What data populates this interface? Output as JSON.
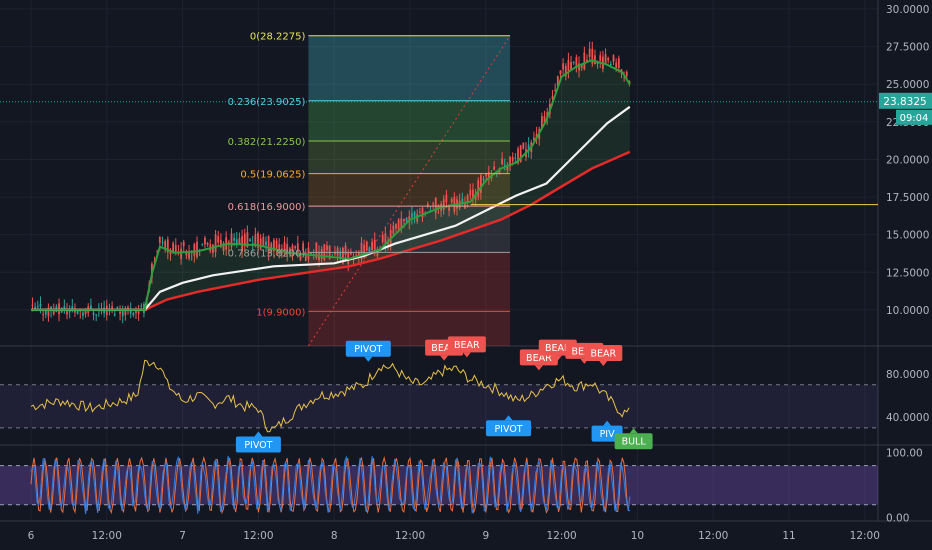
{
  "chart_data": {
    "type": "candlestick",
    "price_axis": {
      "range": [
        7.6,
        30.6
      ],
      "ticks": [
        "30.0000",
        "27.5000",
        "25.0000",
        "22.5000",
        "20.0000",
        "17.5000",
        "15.0000",
        "12.5000",
        "10.0000"
      ],
      "tick_values": [
        30,
        27.5,
        25,
        22.5,
        20,
        17.5,
        15,
        12.5,
        10
      ]
    },
    "last_price": {
      "label": "23.8325",
      "value": 23.8325,
      "countdown": "09:04"
    },
    "horizontal_line": {
      "value": 17.0
    },
    "fibonacci": {
      "time_start": 3.66,
      "time_end": 6.32,
      "levels": [
        {
          "label": "0(28.2275)",
          "ratio": 0,
          "price": 28.2275,
          "color": "#e8e552"
        },
        {
          "label": "0.236(23.9025)",
          "ratio": 0.236,
          "price": 23.9025,
          "color": "#4dd0e1"
        },
        {
          "label": "0.382(21.2250)",
          "ratio": 0.382,
          "price": 21.225,
          "color": "#8bc34a"
        },
        {
          "label": "0.5(19.0625)",
          "ratio": 0.5,
          "price": 19.0625,
          "color": "#ffa726"
        },
        {
          "label": "0.618(16.9000)",
          "ratio": 0.618,
          "price": 16.9,
          "color": "#ef9a9a"
        },
        {
          "label": "0.786(13.8200)",
          "ratio": 0.786,
          "price": 13.82,
          "color": "#9e9e9e"
        },
        {
          "label": "1(9.9000)",
          "ratio": 1,
          "price": 9.9,
          "color": "#f44336"
        }
      ]
    },
    "time_axis": {
      "labels": [
        "6",
        "12:00",
        "7",
        "12:00",
        "8",
        "12:00",
        "9",
        "12:00",
        "10",
        "12:00",
        "11",
        "12:00"
      ],
      "positions": [
        0,
        1,
        2,
        3,
        4,
        5,
        6,
        7,
        8,
        9,
        10,
        11
      ]
    },
    "ema_fast": {
      "name": "",
      "x": [
        0,
        1.5,
        1.6,
        1.7,
        1.9,
        2.2,
        2.6,
        3.0,
        3.4,
        3.8,
        4.2,
        4.6,
        5.0,
        5.4,
        5.8,
        6.0,
        6.2,
        6.4,
        6.6,
        6.8,
        7.0,
        7.2,
        7.4,
        7.6,
        7.8,
        7.9
      ],
      "y": [
        10.0,
        10.0,
        12.5,
        14.2,
        13.8,
        13.9,
        14.4,
        14.3,
        13.8,
        13.6,
        13.4,
        14.0,
        16.0,
        16.8,
        17.2,
        18.6,
        19.4,
        19.8,
        20.8,
        22.6,
        25.5,
        26.2,
        26.6,
        26.3,
        25.8,
        25.0
      ]
    },
    "ema_mid": {
      "name": "",
      "x": [
        0,
        1.5,
        1.7,
        2.0,
        2.4,
        2.8,
        3.2,
        3.6,
        4.0,
        4.4,
        4.8,
        5.2,
        5.6,
        6.0,
        6.4,
        6.8,
        7.2,
        7.6,
        7.9
      ],
      "y": [
        10.0,
        10.0,
        11.2,
        11.8,
        12.3,
        12.6,
        12.9,
        13.0,
        13.1,
        13.6,
        14.4,
        15.0,
        15.6,
        16.6,
        17.6,
        18.4,
        20.4,
        22.4,
        23.5
      ]
    },
    "ema_slow": {
      "name": "",
      "x": [
        0,
        1.5,
        1.8,
        2.2,
        2.6,
        3.0,
        3.4,
        3.8,
        4.2,
        4.6,
        5.0,
        5.4,
        5.8,
        6.2,
        6.6,
        7.0,
        7.4,
        7.9
      ],
      "y": [
        10.0,
        10.0,
        10.7,
        11.2,
        11.6,
        12.0,
        12.3,
        12.6,
        12.9,
        13.4,
        14.0,
        14.6,
        15.3,
        16.0,
        17.0,
        18.2,
        19.4,
        20.5
      ]
    },
    "rsi_panel": {
      "ticks": [
        "80.0000",
        "40.0000"
      ],
      "tick_values": [
        80,
        40
      ],
      "range": [
        15,
        105
      ],
      "upper_band": 70,
      "lower_band": 30,
      "x": [
        0,
        0.4,
        0.8,
        1.2,
        1.4,
        1.5,
        1.6,
        1.7,
        1.8,
        2.0,
        2.2,
        2.4,
        2.6,
        2.8,
        3.0,
        3.1,
        3.2,
        3.4,
        3.6,
        3.8,
        4.0,
        4.2,
        4.4,
        4.6,
        4.8,
        5.0,
        5.2,
        5.4,
        5.6,
        5.8,
        6.0,
        6.2,
        6.4,
        6.6,
        6.8,
        7.0,
        7.2,
        7.4,
        7.6,
        7.8,
        7.9
      ],
      "y": [
        50,
        55,
        48,
        55,
        60,
        90,
        92,
        88,
        70,
        55,
        60,
        52,
        58,
        50,
        48,
        32,
        28,
        40,
        52,
        60,
        62,
        66,
        70,
        88,
        85,
        72,
        70,
        82,
        85,
        75,
        70,
        64,
        55,
        60,
        70,
        75,
        68,
        72,
        58,
        44,
        44
      ]
    },
    "stoch_panel": {
      "ticks": [
        "100.00",
        "0.00"
      ],
      "tick_values": [
        100,
        0
      ],
      "range": [
        -5,
        110
      ],
      "upper_band": 80,
      "lower_band": 20
    },
    "markers": [
      {
        "text": "PIVOT",
        "x": 3.0,
        "panel": "rsi",
        "value": 22,
        "color": "#2196f3",
        "dir": "up"
      },
      {
        "text": "PIVOT",
        "x": 4.45,
        "panel": "rsi",
        "value": 96,
        "color": "#2196f3",
        "dir": "down"
      },
      {
        "text": "BEAR",
        "x": 5.45,
        "panel": "rsi",
        "value": 97,
        "color": "#ef5350",
        "dir": "down"
      },
      {
        "text": "BEAR",
        "x": 5.75,
        "panel": "rsi",
        "value": 100,
        "color": "#ef5350",
        "dir": "down"
      },
      {
        "text": "PIVOT",
        "x": 6.3,
        "panel": "rsi",
        "value": 37,
        "color": "#2196f3",
        "dir": "up"
      },
      {
        "text": "BEAR",
        "x": 6.7,
        "panel": "rsi",
        "value": 88,
        "color": "#ef5350",
        "dir": "down"
      },
      {
        "text": "BEAR",
        "x": 6.95,
        "panel": "rsi",
        "value": 97,
        "color": "#ef5350",
        "dir": "down"
      },
      {
        "text": "BEAR",
        "x": 7.3,
        "panel": "rsi",
        "value": 94,
        "color": "#ef5350",
        "dir": "down"
      },
      {
        "text": "BEAR",
        "x": 7.55,
        "panel": "rsi",
        "value": 92,
        "color": "#ef5350",
        "dir": "down"
      },
      {
        "text": "PIV",
        "x": 7.6,
        "panel": "rsi",
        "value": 32,
        "color": "#2196f3",
        "dir": "up"
      },
      {
        "text": "BULL",
        "x": 7.95,
        "panel": "rsi",
        "value": 25,
        "color": "#4caf50",
        "dir": "up"
      }
    ]
  }
}
